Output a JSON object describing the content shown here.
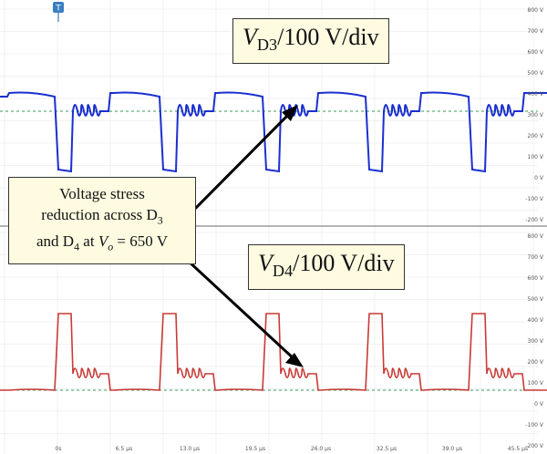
{
  "ch1": {
    "label_var": "V",
    "label_sub": "D3",
    "label_scale": "/100 V/div",
    "color": "#1a2fd0"
  },
  "ch2": {
    "label_var": "V",
    "label_sub": "D4",
    "label_scale": "/100 V/div",
    "color": "#c83a36"
  },
  "note": {
    "line1": "Voltage stress",
    "line2_text": "reduction across D",
    "line2_sub": "3",
    "line3_a": "and D",
    "line3_sub": "4",
    "line3_b": " at ",
    "line3_var": "V",
    "line3_var_sub": "o",
    "line3_c": " = 650 V"
  },
  "trigger_marker": "T",
  "y_ticks_top": [
    "800 V",
    "700 V",
    "600 V",
    "500 V",
    "400 V",
    "300 V",
    "200 V",
    "100 V",
    "0 V",
    "-100 V",
    "-200 V"
  ],
  "y_ticks_bottom": [
    "800 V",
    "700 V",
    "600 V",
    "500 V",
    "400 V",
    "300 V",
    "200 V",
    "100 V",
    "0 V",
    "-100 V",
    "-200 V"
  ],
  "x_ticks": [
    "0s",
    "6.5 µs",
    "13.0 µs",
    "19.5 µs",
    "26.0 µs",
    "32.5 µs",
    "39.0 µs",
    "45.5 µs"
  ]
}
